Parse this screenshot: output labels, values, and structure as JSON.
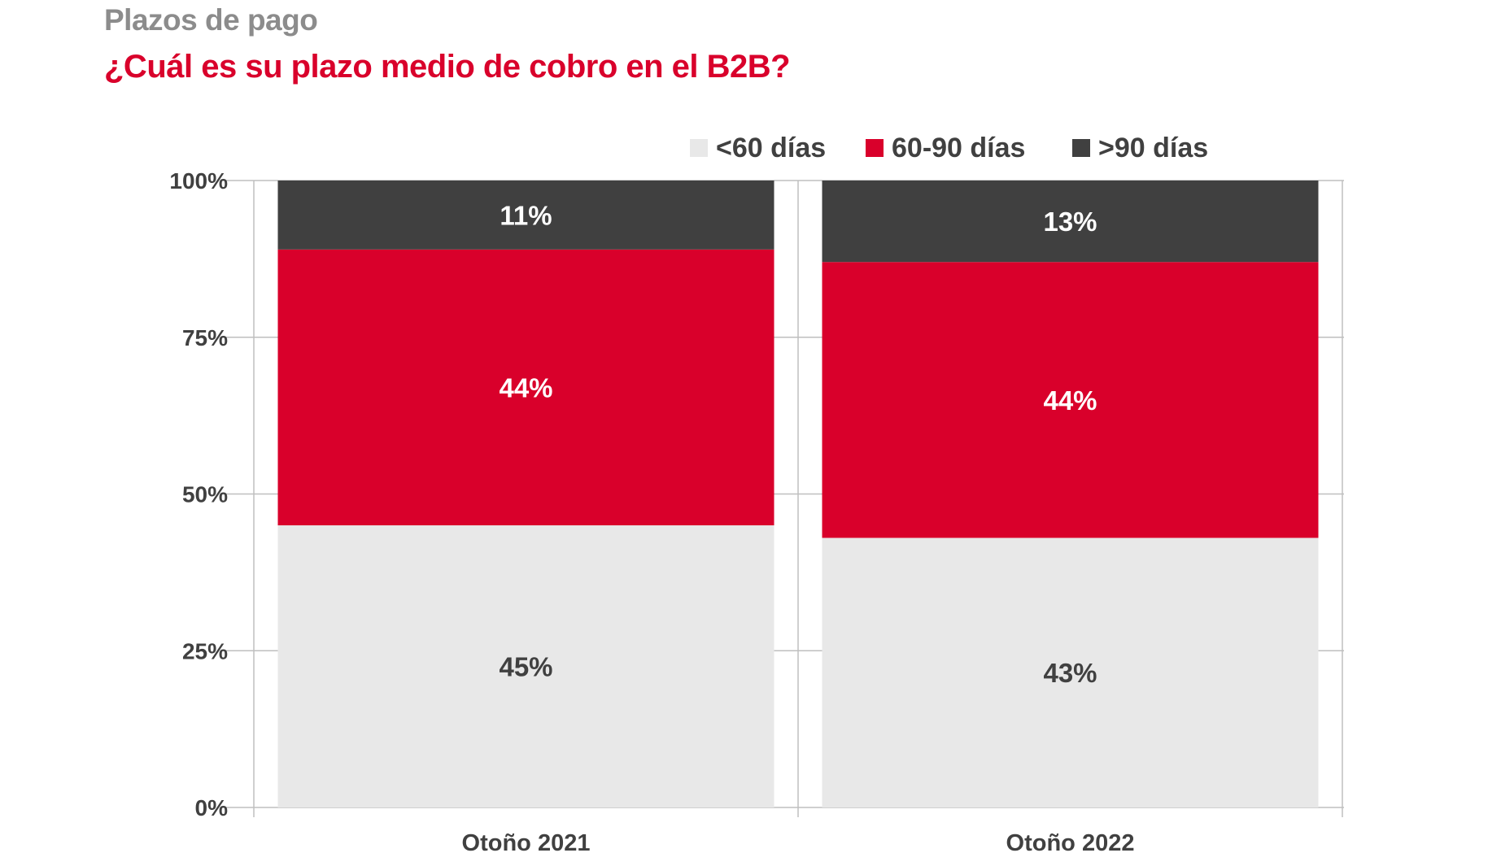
{
  "chart_data": {
    "type": "bar",
    "stacked": true,
    "title": "Plazos de pago",
    "subtitle": "¿Cuál es su plazo medio de cobro en el B2B?",
    "categories": [
      "Otoño 2021",
      "Otoño 2022"
    ],
    "series": [
      {
        "name": "<60 días",
        "values": [
          45,
          43
        ],
        "labels": [
          "45%",
          "43%"
        ],
        "color": "#e8e8e8",
        "label_color": "#404040"
      },
      {
        "name": "60-90 días",
        "values": [
          44,
          44
        ],
        "labels": [
          "44%",
          "44%"
        ],
        "color": "#d9002b",
        "label_color": "#ffffff"
      },
      {
        "name": ">90 días",
        "values": [
          11,
          13
        ],
        "labels": [
          "11%",
          "13%"
        ],
        "color": "#404040",
        "label_color": "#ffffff"
      }
    ],
    "ylim": [
      0,
      100
    ],
    "yticks": [
      0,
      25,
      50,
      75,
      100
    ],
    "ytick_labels": [
      "0%",
      "25%",
      "50%",
      "75%",
      "100%"
    ],
    "xlabel": "",
    "ylabel": "",
    "grid": true,
    "legend_position": "top-right"
  }
}
